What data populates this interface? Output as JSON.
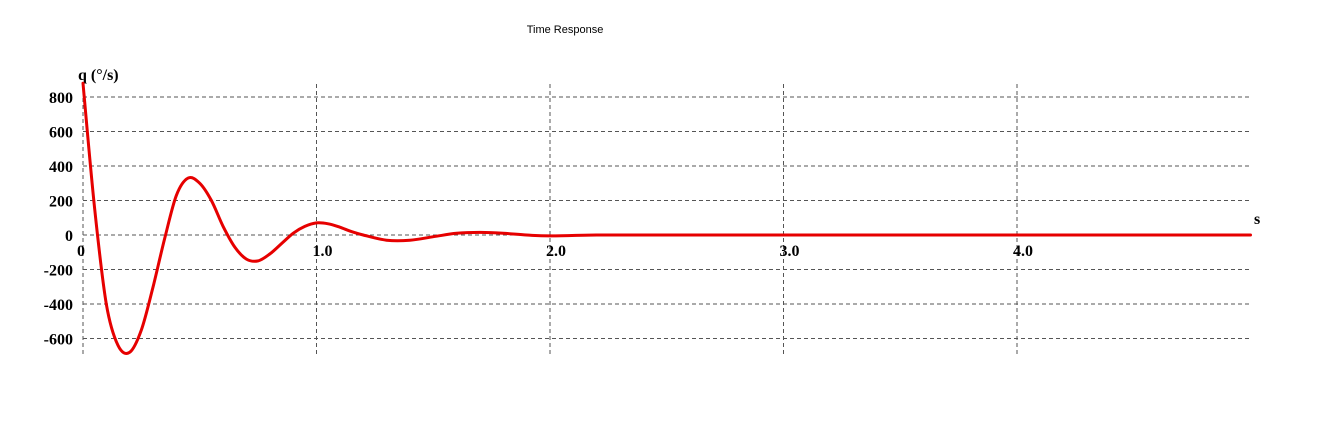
{
  "chart_data": {
    "type": "line",
    "title": "Time Response",
    "ylabel": "q (°/s)",
    "xlabel": "s",
    "xlim": [
      0,
      5
    ],
    "ylim": [
      -700,
      800
    ],
    "x_ticks": [
      {
        "value": 0,
        "label": "0"
      },
      {
        "value": 1,
        "label": "1.0"
      },
      {
        "value": 2,
        "label": "2.0"
      },
      {
        "value": 3,
        "label": "3.0"
      },
      {
        "value": 4,
        "label": "4.0"
      }
    ],
    "y_ticks": [
      {
        "value": 800,
        "label": "800"
      },
      {
        "value": 600,
        "label": "600"
      },
      {
        "value": 400,
        "label": "400"
      },
      {
        "value": 200,
        "label": "200"
      },
      {
        "value": 0,
        "label": "0"
      },
      {
        "value": -200,
        "label": "-200"
      },
      {
        "value": -400,
        "label": "-400"
      },
      {
        "value": -600,
        "label": "-600"
      }
    ],
    "grid": true,
    "series": [
      {
        "color": "#e60000",
        "x": [
          0,
          0.05,
          0.1,
          0.15,
          0.2,
          0.25,
          0.3,
          0.35,
          0.4,
          0.45,
          0.5,
          0.55,
          0.6,
          0.65,
          0.7,
          0.75,
          0.8,
          0.85,
          0.9,
          0.95,
          1.0,
          1.05,
          1.1,
          1.15,
          1.2,
          1.3,
          1.4,
          1.5,
          1.6,
          1.7,
          1.8,
          1.9,
          2.0,
          2.2,
          2.4,
          2.6,
          2.8,
          3.0,
          3.5,
          4.0,
          4.5,
          5.0
        ],
        "y": [
          880,
          150,
          -400,
          -640,
          -680,
          -550,
          -300,
          -20,
          230,
          330,
          300,
          200,
          50,
          -70,
          -140,
          -150,
          -110,
          -50,
          10,
          50,
          70,
          65,
          45,
          20,
          0,
          -30,
          -30,
          -10,
          10,
          15,
          10,
          0,
          -5,
          0,
          0,
          0,
          0,
          0,
          0,
          0,
          0,
          0
        ]
      }
    ]
  }
}
